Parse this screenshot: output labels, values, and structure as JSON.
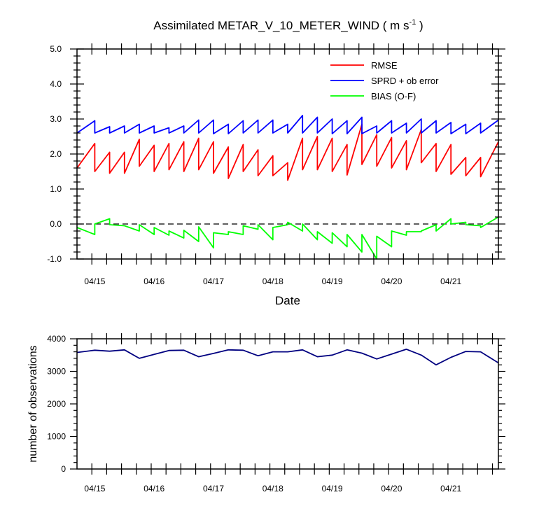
{
  "chart_data": [
    {
      "type": "line",
      "title": "Assimilated METAR_V_10_METER_WIND ( m s",
      "title_unit_sup": "-1",
      "title_close": " )",
      "xlabel": "Date",
      "ylabel": "",
      "ylim": [
        -1.0,
        5.0
      ],
      "y_ticks": [
        "-1.0",
        "0.0",
        "1.0",
        "2.0",
        "3.0",
        "4.0",
        "5.0"
      ],
      "x_range_days": [
        14.5,
        21.6
      ],
      "x_ticks": [
        {
          "label": "04/15",
          "day": 14.8
        },
        {
          "label": "04/16",
          "day": 15.8
        },
        {
          "label": "04/17",
          "day": 16.8
        },
        {
          "label": "04/18",
          "day": 17.8
        },
        {
          "label": "04/19",
          "day": 18.8
        },
        {
          "label": "04/20",
          "day": 19.8
        },
        {
          "label": "04/21",
          "day": 20.8
        }
      ],
      "zero_line": true,
      "legend_position": "top-right",
      "series": [
        {
          "name": "RMSE",
          "color": "#ff0000",
          "x": [
            14.5,
            14.8,
            14.8,
            15.05,
            15.05,
            15.3,
            15.3,
            15.55,
            15.55,
            15.8,
            15.8,
            16.05,
            16.05,
            16.3,
            16.3,
            16.55,
            16.55,
            16.8,
            16.8,
            17.05,
            17.05,
            17.3,
            17.3,
            17.55,
            17.55,
            17.8,
            17.8,
            18.05,
            18.05,
            18.3,
            18.3,
            18.55,
            18.55,
            18.8,
            18.8,
            19.05,
            19.05,
            19.3,
            19.3,
            19.55,
            19.55,
            19.8,
            19.8,
            20.05,
            20.05,
            20.3,
            20.3,
            20.55,
            20.55,
            20.8,
            20.8,
            21.05,
            21.05,
            21.3,
            21.3,
            21.6
          ],
          "values": [
            1.6,
            2.3,
            1.5,
            2.05,
            1.45,
            2.05,
            1.45,
            2.42,
            1.65,
            2.25,
            1.5,
            2.3,
            1.55,
            2.35,
            1.5,
            2.45,
            1.55,
            2.35,
            1.45,
            2.2,
            1.3,
            2.27,
            1.5,
            2.12,
            1.38,
            1.95,
            1.38,
            1.75,
            1.25,
            2.45,
            1.55,
            2.5,
            1.55,
            2.45,
            1.5,
            2.27,
            1.4,
            2.85,
            1.7,
            2.55,
            1.65,
            2.47,
            1.6,
            2.38,
            1.55,
            2.7,
            1.75,
            2.3,
            1.5,
            2.27,
            1.42,
            1.9,
            1.38,
            1.9,
            1.35,
            2.35
          ]
        },
        {
          "name": "SPRD + ob error",
          "color": "#0000ff",
          "x": [
            14.5,
            14.8,
            14.8,
            15.05,
            15.05,
            15.3,
            15.3,
            15.55,
            15.55,
            15.8,
            15.8,
            16.05,
            16.05,
            16.3,
            16.3,
            16.55,
            16.55,
            16.8,
            16.8,
            17.05,
            17.05,
            17.3,
            17.3,
            17.55,
            17.55,
            17.8,
            17.8,
            18.05,
            18.05,
            18.3,
            18.3,
            18.55,
            18.55,
            18.8,
            18.8,
            19.05,
            19.05,
            19.3,
            19.3,
            19.55,
            19.55,
            19.8,
            19.8,
            20.05,
            20.05,
            20.3,
            20.3,
            20.55,
            20.55,
            20.8,
            20.8,
            21.05,
            21.05,
            21.3,
            21.3,
            21.6
          ],
          "values": [
            2.6,
            2.95,
            2.6,
            2.78,
            2.6,
            2.8,
            2.6,
            2.85,
            2.6,
            2.8,
            2.6,
            2.75,
            2.6,
            2.8,
            2.6,
            2.97,
            2.6,
            2.97,
            2.58,
            2.85,
            2.58,
            2.95,
            2.6,
            2.97,
            2.6,
            2.97,
            2.6,
            2.85,
            2.6,
            3.1,
            2.6,
            3.05,
            2.6,
            3.0,
            2.58,
            2.95,
            2.58,
            3.05,
            2.58,
            2.8,
            2.6,
            2.95,
            2.6,
            2.88,
            2.6,
            3.0,
            2.6,
            2.95,
            2.6,
            2.9,
            2.58,
            2.85,
            2.58,
            2.88,
            2.6,
            2.97
          ]
        },
        {
          "name": "BIAS (O-F)",
          "color": "#00ff00",
          "x": [
            14.5,
            14.8,
            14.8,
            15.05,
            15.05,
            15.3,
            15.3,
            15.55,
            15.55,
            15.8,
            15.8,
            16.05,
            16.05,
            16.3,
            16.3,
            16.55,
            16.55,
            16.8,
            16.8,
            17.05,
            17.05,
            17.3,
            17.3,
            17.55,
            17.55,
            17.8,
            17.8,
            18.05,
            18.05,
            18.3,
            18.3,
            18.55,
            18.55,
            18.8,
            18.8,
            19.05,
            19.05,
            19.3,
            19.3,
            19.55,
            19.55,
            19.8,
            19.8,
            20.05,
            20.05,
            20.3,
            20.3,
            20.55,
            20.55,
            20.8,
            20.8,
            21.05,
            21.05,
            21.3,
            21.3,
            21.6
          ],
          "values": [
            -0.1,
            -0.3,
            0.0,
            0.15,
            -0.02,
            -0.05,
            -0.05,
            -0.2,
            -0.02,
            -0.3,
            -0.1,
            -0.32,
            -0.2,
            -0.4,
            -0.18,
            -0.5,
            -0.08,
            -0.68,
            -0.25,
            -0.3,
            -0.22,
            -0.3,
            -0.05,
            -0.15,
            -0.02,
            -0.45,
            -0.1,
            -0.02,
            0.05,
            -0.2,
            0.0,
            -0.45,
            -0.22,
            -0.55,
            -0.25,
            -0.65,
            -0.3,
            -0.8,
            -0.3,
            -1.0,
            -0.35,
            -0.65,
            -0.2,
            -0.32,
            -0.22,
            -0.22,
            -0.2,
            -0.02,
            -0.2,
            0.15,
            0.0,
            0.05,
            -0.02,
            -0.05,
            -0.1,
            0.2
          ]
        }
      ]
    },
    {
      "type": "line",
      "title": "",
      "xlabel": "",
      "ylabel": "number of observations",
      "ylim": [
        0,
        4000
      ],
      "y_ticks": [
        "0",
        "1000",
        "2000",
        "3000",
        "4000"
      ],
      "x_range_days": [
        14.5,
        21.6
      ],
      "x_ticks": [
        {
          "label": "04/15",
          "day": 14.8
        },
        {
          "label": "04/16",
          "day": 15.8
        },
        {
          "label": "04/17",
          "day": 16.8
        },
        {
          "label": "04/18",
          "day": 17.8
        },
        {
          "label": "04/19",
          "day": 18.8
        },
        {
          "label": "04/20",
          "day": 19.8
        },
        {
          "label": "04/21",
          "day": 20.8
        }
      ],
      "series": [
        {
          "color": "#000080",
          "x": [
            14.5,
            14.8,
            15.05,
            15.3,
            15.55,
            15.8,
            16.05,
            16.3,
            16.55,
            16.8,
            17.05,
            17.3,
            17.55,
            17.8,
            18.05,
            18.3,
            18.55,
            18.8,
            19.05,
            19.3,
            19.55,
            19.8,
            20.05,
            20.3,
            20.55,
            20.8,
            21.05,
            21.3,
            21.6
          ],
          "values": [
            3580,
            3650,
            3620,
            3660,
            3400,
            3520,
            3640,
            3650,
            3450,
            3550,
            3660,
            3650,
            3480,
            3600,
            3600,
            3660,
            3450,
            3500,
            3660,
            3560,
            3380,
            3530,
            3680,
            3500,
            3200,
            3430,
            3610,
            3600,
            3260
          ]
        }
      ]
    }
  ]
}
